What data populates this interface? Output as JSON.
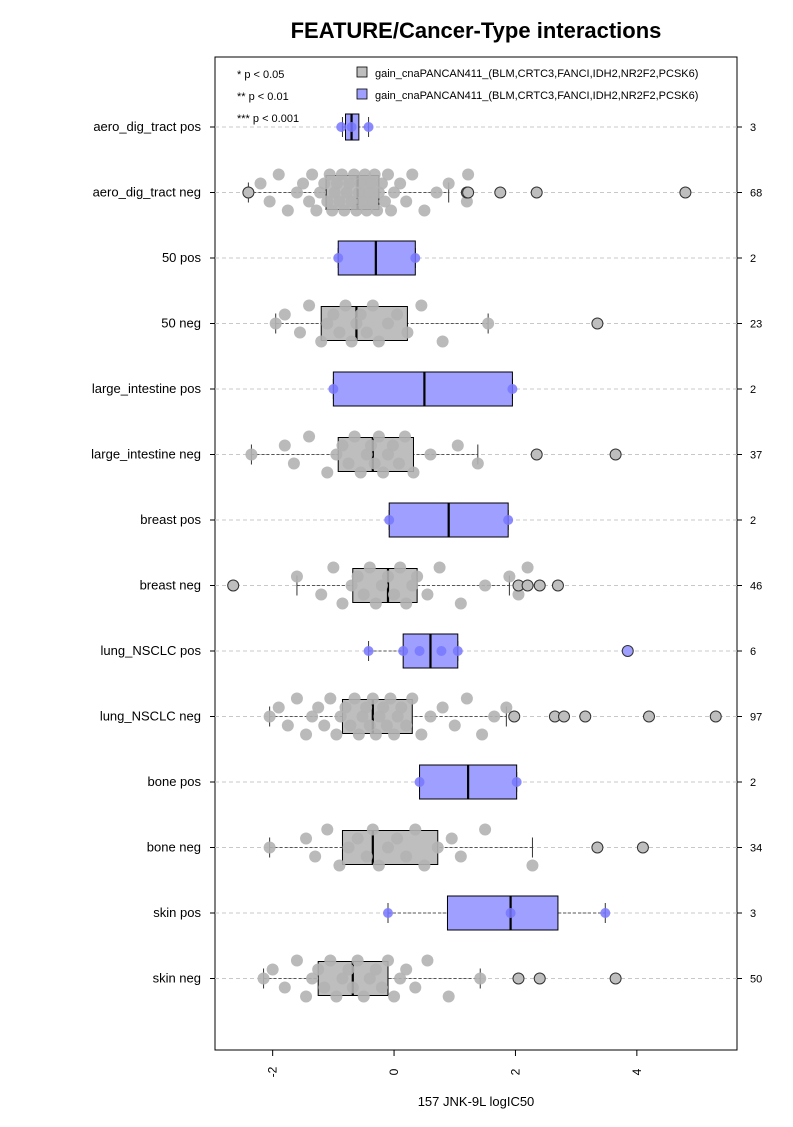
{
  "chart_data": {
    "type": "boxplot",
    "orientation": "horizontal",
    "title": "FEATURE/Cancer-Type interactions",
    "xlabel": "157 JNK-9L logIC50",
    "xlim": [
      -2.95,
      5.65
    ],
    "x_ticks": [
      -2,
      0,
      2,
      4
    ],
    "x_tick_labels": [
      "-2",
      "0",
      "2",
      "4"
    ],
    "grid": "horizontal dashed lines at each group",
    "legend_position": "top",
    "legend": [
      {
        "label": "gain_cnaPANCAN411_(BLM,CRTC3,FANCI,IDH2,NR2F2,PCSK6)",
        "color": "#bebebe"
      },
      {
        "label": "gain_cnaPANCAN411_(BLM,CRTC3,FANCI,IDH2,NR2F2,PCSK6)",
        "color": "#9f9fff"
      }
    ],
    "significance_legend": [
      "* p < 0.05",
      "** p < 0.01",
      "*** p < 0.001"
    ],
    "colors": {
      "neg_fill": "#bebebe",
      "neg_point": "#b3b3b3",
      "pos_fill": "#9f9fff",
      "pos_point": "#7777ff"
    },
    "groups": [
      {
        "label": "aero_dig_tract pos",
        "type": "pos",
        "n": "3",
        "whisker_lo": -0.85,
        "q1": -0.8,
        "median": -0.7,
        "q3": -0.58,
        "whisker_hi": -0.42,
        "points": [
          -0.87,
          -0.7,
          -0.42
        ],
        "outliers": []
      },
      {
        "label": "aero_dig_tract neg",
        "type": "neg",
        "n": "68",
        "whisker_lo": -2.4,
        "q1": -1.12,
        "median": -0.6,
        "q3": -0.25,
        "whisker_hi": 0.9,
        "points": [
          -2.4,
          -2.2,
          -2.05,
          -1.9,
          -1.75,
          -1.6,
          -1.5,
          -1.4,
          -1.35,
          -1.28,
          -1.22,
          -1.15,
          -1.1,
          -1.06,
          -1.02,
          -0.98,
          -0.94,
          -0.9,
          -0.86,
          -0.82,
          -0.78,
          -0.74,
          -0.7,
          -0.66,
          -0.62,
          -0.58,
          -0.55,
          -0.52,
          -0.48,
          -0.45,
          -0.42,
          -0.38,
          -0.35,
          -0.32,
          -0.28,
          -0.25,
          -0.2,
          -0.15,
          -0.1,
          -0.05,
          0.0,
          0.1,
          0.2,
          0.3,
          0.5,
          0.7,
          0.9,
          1.2,
          1.22
        ],
        "outliers": [
          -2.4,
          1.2,
          1.22,
          1.75,
          2.35,
          4.8
        ]
      },
      {
        "label": "50 pos",
        "type": "pos",
        "n": "2",
        "whisker_lo": -0.92,
        "q1": -0.92,
        "median": -0.3,
        "q3": 0.35,
        "whisker_hi": 0.35,
        "points": [
          -0.92,
          0.35
        ],
        "outliers": []
      },
      {
        "label": "50 neg",
        "type": "neg",
        "n": "23",
        "whisker_lo": -1.95,
        "q1": -1.2,
        "median": -0.62,
        "q3": 0.22,
        "whisker_hi": 1.55,
        "points": [
          -1.95,
          -1.8,
          -1.55,
          -1.4,
          -1.2,
          -1.1,
          -1.0,
          -0.9,
          -0.8,
          -0.7,
          -0.62,
          -0.55,
          -0.45,
          -0.35,
          -0.25,
          -0.1,
          0.05,
          0.22,
          0.45,
          0.8,
          1.55
        ],
        "outliers": [
          3.35
        ]
      },
      {
        "label": "large_intestine pos",
        "type": "pos",
        "n": "2",
        "whisker_lo": -1.0,
        "q1": -1.0,
        "median": 0.5,
        "q3": 1.95,
        "whisker_hi": 1.95,
        "points": [
          -1.0,
          1.95
        ],
        "outliers": []
      },
      {
        "label": "large_intestine neg",
        "type": "neg",
        "n": "37",
        "whisker_lo": -2.35,
        "q1": -0.92,
        "median": -0.35,
        "q3": 0.32,
        "whisker_hi": 1.38,
        "points": [
          -2.35,
          -1.8,
          -1.65,
          -1.4,
          -1.1,
          -0.95,
          -0.85,
          -0.75,
          -0.65,
          -0.55,
          -0.45,
          -0.38,
          -0.32,
          -0.25,
          -0.18,
          -0.1,
          -0.02,
          0.08,
          0.18,
          0.32,
          0.6,
          1.05,
          1.38
        ],
        "outliers": [
          2.35,
          3.65
        ]
      },
      {
        "label": "breast pos",
        "type": "pos",
        "n": "2",
        "whisker_lo": -0.08,
        "q1": -0.08,
        "median": 0.9,
        "q3": 1.88,
        "whisker_hi": 1.88,
        "points": [
          -0.08,
          1.88
        ],
        "outliers": []
      },
      {
        "label": "breast neg",
        "type": "neg",
        "n": "46",
        "whisker_lo": -1.6,
        "q1": -0.68,
        "median": -0.1,
        "q3": 0.38,
        "whisker_hi": 1.9,
        "points": [
          -2.65,
          -1.6,
          -1.2,
          -1.0,
          -0.85,
          -0.7,
          -0.6,
          -0.5,
          -0.4,
          -0.3,
          -0.2,
          -0.1,
          0.0,
          0.1,
          0.2,
          0.3,
          0.38,
          0.55,
          0.75,
          1.1,
          1.5,
          1.9,
          2.05,
          2.2
        ],
        "outliers": [
          -2.65,
          2.05,
          2.2,
          2.4,
          2.7
        ]
      },
      {
        "label": "lung_NSCLC pos",
        "type": "pos",
        "n": "6",
        "whisker_lo": -0.42,
        "q1": 0.15,
        "median": 0.6,
        "q3": 1.05,
        "whisker_hi": 1.05,
        "points": [
          -0.42,
          0.15,
          0.42,
          0.78,
          1.05
        ],
        "outliers": [
          3.85
        ]
      },
      {
        "label": "lung_NSCLC neg",
        "type": "neg",
        "n": "97",
        "whisker_lo": -2.05,
        "q1": -0.85,
        "median": -0.35,
        "q3": 0.3,
        "whisker_hi": 1.85,
        "points": [
          -2.05,
          -1.9,
          -1.75,
          -1.6,
          -1.45,
          -1.35,
          -1.25,
          -1.15,
          -1.05,
          -0.95,
          -0.88,
          -0.8,
          -0.72,
          -0.65,
          -0.58,
          -0.52,
          -0.46,
          -0.4,
          -0.35,
          -0.3,
          -0.24,
          -0.18,
          -0.12,
          -0.06,
          0.0,
          0.06,
          0.12,
          0.2,
          0.3,
          0.45,
          0.6,
          0.8,
          1.0,
          1.2,
          1.45,
          1.65,
          1.85
        ],
        "outliers": [
          1.98,
          2.65,
          2.8,
          3.15,
          4.2,
          5.3
        ]
      },
      {
        "label": "bone pos",
        "type": "pos",
        "n": "2",
        "whisker_lo": 0.42,
        "q1": 0.42,
        "median": 1.22,
        "q3": 2.02,
        "whisker_hi": 2.02,
        "points": [
          0.42,
          2.02
        ],
        "outliers": []
      },
      {
        "label": "bone neg",
        "type": "neg",
        "n": "34",
        "whisker_lo": -2.05,
        "q1": -0.85,
        "median": -0.35,
        "q3": 0.72,
        "whisker_hi": 2.28,
        "points": [
          -2.05,
          -1.45,
          -1.3,
          -1.1,
          -0.9,
          -0.75,
          -0.6,
          -0.45,
          -0.35,
          -0.25,
          -0.1,
          0.05,
          0.2,
          0.35,
          0.5,
          0.72,
          0.95,
          1.1,
          1.5,
          2.28
        ],
        "outliers": [
          3.35,
          4.1
        ]
      },
      {
        "label": "skin pos",
        "type": "pos",
        "n": "3",
        "whisker_lo": -0.1,
        "q1": 0.88,
        "median": 1.92,
        "q3": 2.7,
        "whisker_hi": 3.48,
        "points": [
          -0.1,
          1.92,
          3.48
        ],
        "outliers": []
      },
      {
        "label": "skin neg",
        "type": "neg",
        "n": "50",
        "whisker_lo": -2.15,
        "q1": -1.25,
        "median": -0.68,
        "q3": -0.1,
        "whisker_hi": 1.42,
        "points": [
          -2.15,
          -2.0,
          -1.8,
          -1.6,
          -1.45,
          -1.35,
          -1.25,
          -1.15,
          -1.05,
          -0.95,
          -0.85,
          -0.75,
          -0.68,
          -0.6,
          -0.5,
          -0.4,
          -0.3,
          -0.2,
          -0.1,
          0.0,
          0.1,
          0.2,
          0.35,
          0.55,
          0.9,
          1.42
        ],
        "outliers": [
          2.05,
          2.4,
          3.65
        ]
      }
    ]
  }
}
